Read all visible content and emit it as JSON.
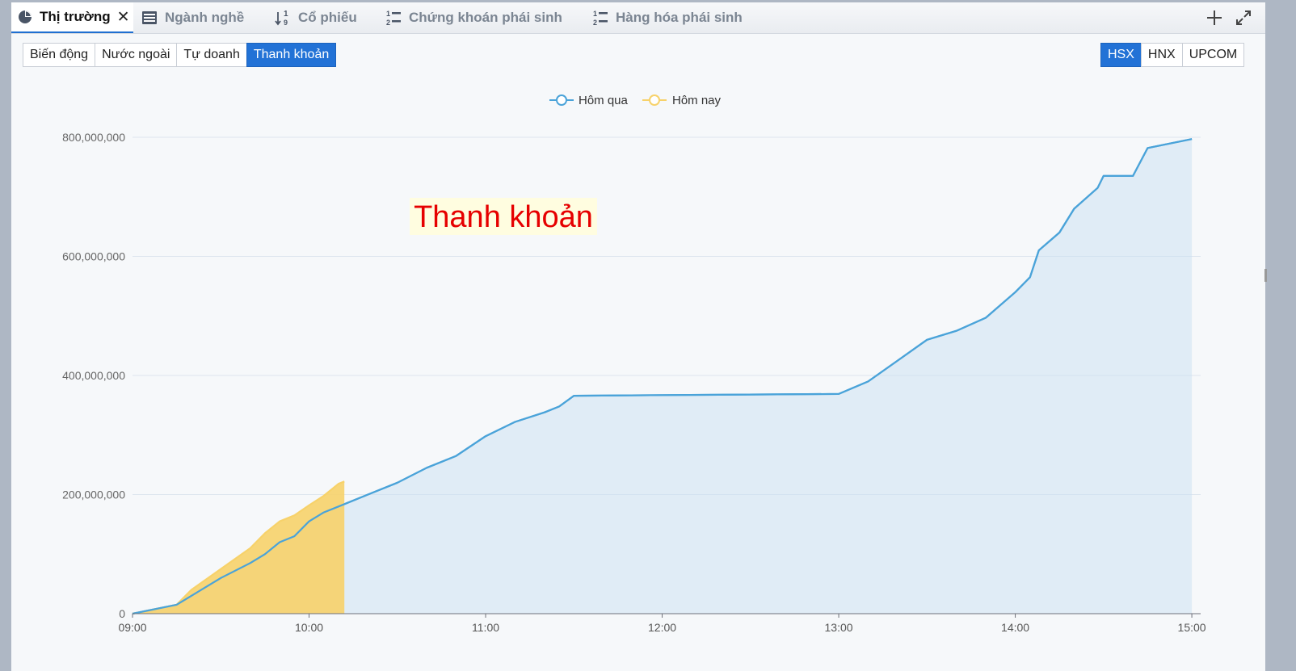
{
  "tabs": [
    {
      "label": "Thị trường",
      "icon": "pie-chart-icon",
      "active": true
    },
    {
      "label": "Ngành nghề",
      "icon": "list-icon"
    },
    {
      "label": "Cổ phiếu",
      "icon": "sort-numeric-icon"
    },
    {
      "label": "Chứng khoán phái sinh",
      "icon": "numbered-list-icon"
    },
    {
      "label": "Hàng hóa phái sinh",
      "icon": "numbered-list-icon"
    }
  ],
  "view_buttons": [
    "Biến động",
    "Nước ngoài",
    "Tự doanh",
    "Thanh khoản"
  ],
  "active_view": "Thanh khoản",
  "exchange_buttons": [
    "HSX",
    "HNX",
    "UPCOM"
  ],
  "active_exchange": "HSX",
  "chart_watermark": "Thanh khoản",
  "colors": {
    "accent": "#2272d6",
    "yesterday": "#4aa3d9",
    "today": "#f7d26a",
    "watermark": "#e60000"
  },
  "chart_data": {
    "type": "area",
    "title": "",
    "xlabel": "",
    "ylabel": "",
    "ylim": [
      0,
      800000000
    ],
    "y_ticks": [
      "0",
      "200,000,000",
      "400,000,000",
      "600,000,000",
      "800,000,000"
    ],
    "x_ticks": [
      "09:00",
      "10:00",
      "11:00",
      "12:00",
      "13:00",
      "14:00",
      "15:00"
    ],
    "legend": "top-center",
    "grid": true,
    "series": [
      {
        "name": "Hôm qua",
        "color": "#4aa3d9",
        "points": [
          [
            "09:00",
            0
          ],
          [
            "09:15",
            15000000
          ],
          [
            "09:20",
            30000000
          ],
          [
            "09:30",
            60000000
          ],
          [
            "09:40",
            85000000
          ],
          [
            "09:45",
            100000000
          ],
          [
            "09:50",
            120000000
          ],
          [
            "09:55",
            130000000
          ],
          [
            "10:00",
            155000000
          ],
          [
            "10:05",
            170000000
          ],
          [
            "10:10",
            180000000
          ],
          [
            "10:20",
            200000000
          ],
          [
            "10:30",
            220000000
          ],
          [
            "10:40",
            245000000
          ],
          [
            "10:50",
            265000000
          ],
          [
            "11:00",
            298000000
          ],
          [
            "11:10",
            322000000
          ],
          [
            "11:20",
            338000000
          ],
          [
            "11:25",
            348000000
          ],
          [
            "11:30",
            366000000
          ],
          [
            "12:00",
            367000000
          ],
          [
            "13:00",
            369000000
          ],
          [
            "13:10",
            390000000
          ],
          [
            "13:20",
            425000000
          ],
          [
            "13:30",
            460000000
          ],
          [
            "13:40",
            475000000
          ],
          [
            "13:50",
            497000000
          ],
          [
            "14:00",
            540000000
          ],
          [
            "14:05",
            565000000
          ],
          [
            "14:08",
            610000000
          ],
          [
            "14:15",
            640000000
          ],
          [
            "14:20",
            680000000
          ],
          [
            "14:28",
            715000000
          ],
          [
            "14:30",
            735000000
          ],
          [
            "14:40",
            735000000
          ],
          [
            "14:45",
            782000000
          ],
          [
            "15:00",
            797000000
          ]
        ]
      },
      {
        "name": "Hôm nay",
        "color": "#f7d26a",
        "points": [
          [
            "09:00",
            0
          ],
          [
            "09:15",
            15000000
          ],
          [
            "09:20",
            40000000
          ],
          [
            "09:30",
            75000000
          ],
          [
            "09:40",
            110000000
          ],
          [
            "09:45",
            135000000
          ],
          [
            "09:50",
            155000000
          ],
          [
            "09:55",
            165000000
          ],
          [
            "10:00",
            182000000
          ],
          [
            "10:05",
            198000000
          ],
          [
            "10:10",
            218000000
          ],
          [
            "10:12",
            222000000
          ]
        ]
      }
    ]
  }
}
